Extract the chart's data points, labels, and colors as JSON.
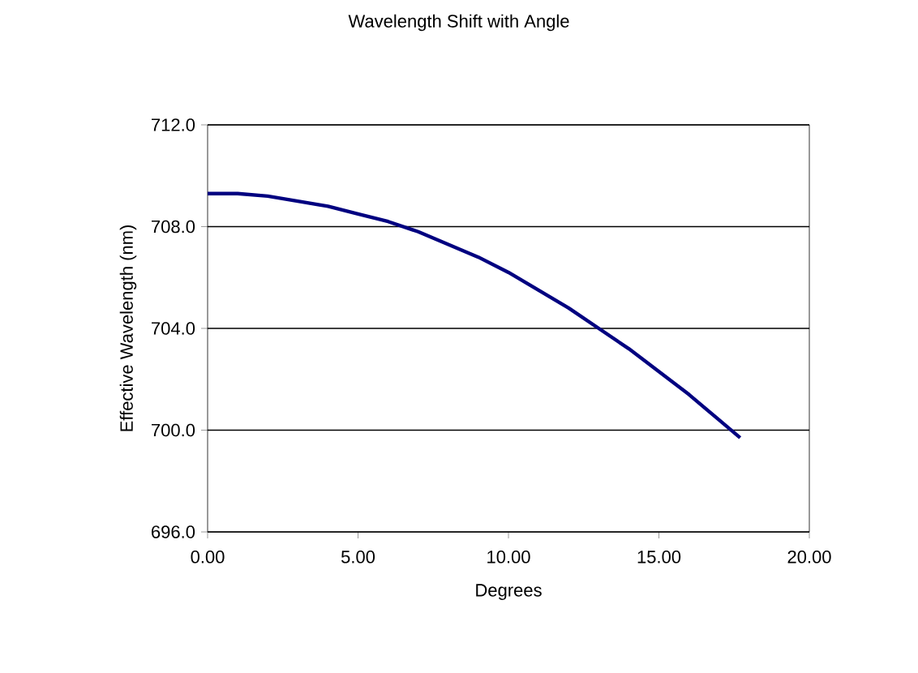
{
  "chart_data": {
    "type": "line",
    "title": "Wavelength Shift with Angle",
    "xlabel": "Degrees",
    "ylabel": "Effective Wavelength (nm)",
    "series": [
      {
        "color": "#000080",
        "x": [
          0,
          1,
          2,
          3,
          4,
          5,
          6,
          7,
          8,
          9,
          10,
          11,
          12,
          13,
          14,
          15,
          16,
          17,
          17.7
        ],
        "values": [
          709.3,
          709.3,
          709.2,
          709.0,
          708.8,
          708.5,
          708.2,
          707.8,
          707.3,
          706.8,
          706.2,
          705.5,
          704.8,
          704.0,
          703.2,
          702.3,
          701.4,
          700.4,
          699.7
        ]
      }
    ],
    "xlim": [
      0,
      20
    ],
    "ylim": [
      696,
      712
    ],
    "xticks": [
      {
        "value": 0,
        "label": "0.00"
      },
      {
        "value": 5,
        "label": "5.00"
      },
      {
        "value": 10,
        "label": "10.00"
      },
      {
        "value": 15,
        "label": "15.00"
      },
      {
        "value": 20,
        "label": "20.00"
      }
    ],
    "yticks": [
      {
        "value": 696,
        "label": "696.0"
      },
      {
        "value": 700,
        "label": "700.0"
      },
      {
        "value": 704,
        "label": "704.0"
      },
      {
        "value": 708,
        "label": "708.0"
      },
      {
        "value": 712,
        "label": "712.0"
      }
    ],
    "grid": "y",
    "marker": "none",
    "line_style": "solid"
  }
}
